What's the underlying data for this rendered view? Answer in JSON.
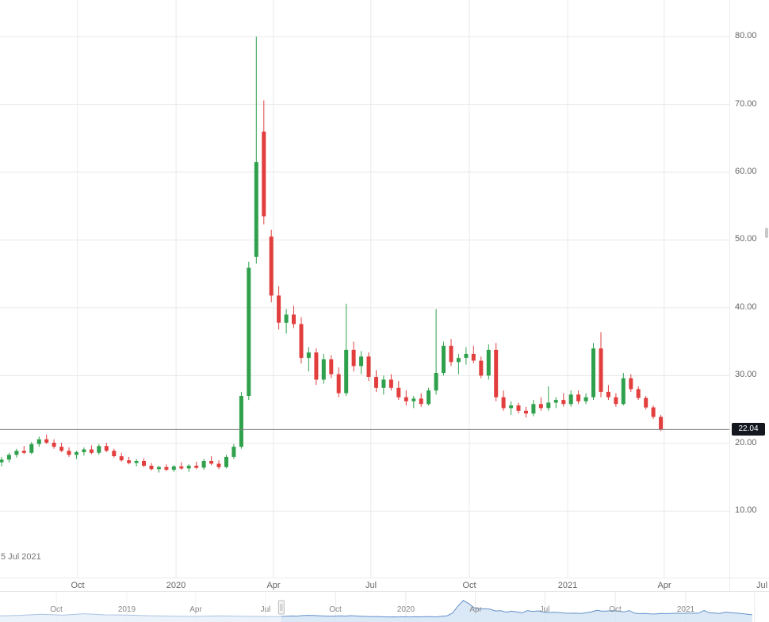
{
  "chart": {
    "footer_date_label": "5 Jul 2021",
    "colors": {
      "up": "#2fa14c",
      "down": "#e23e3e",
      "grid": "#e9e9e9",
      "axis_text": "#666666",
      "price_line": "#7f7f7f",
      "badge_bg": "#15171e",
      "badge_text": "#ffffff",
      "nav_line": "#6492cc",
      "nav_fill": "#cfe0f1",
      "border": "#e6e6e6"
    }
  },
  "chart_data": {
    "type": "candlestick",
    "interval": "weekly",
    "start_date": "2019-07-22",
    "title": "",
    "xlabel": "",
    "ylabel": "",
    "ylim": [
      0.2,
      85.4
    ],
    "grid": true,
    "legend": "none",
    "last_close": 22.04,
    "last_close_label": "22.04",
    "y_ticks": [
      {
        "value": 80,
        "label": "80.00"
      },
      {
        "value": 70,
        "label": "70.00"
      },
      {
        "value": 60,
        "label": "60.00"
      },
      {
        "value": 50,
        "label": "50.00"
      },
      {
        "value": 40,
        "label": "40.00"
      },
      {
        "value": 30,
        "label": "30.00"
      },
      {
        "value": 20,
        "label": "20.00"
      },
      {
        "value": 10,
        "label": "10.00"
      }
    ],
    "x_ticks": [
      {
        "label": "Oct",
        "week": 10.14
      },
      {
        "label": "2020",
        "week": 23.29
      },
      {
        "label": "Apr",
        "week": 36.29
      },
      {
        "label": "Jul",
        "week": 49.29
      },
      {
        "label": "Oct",
        "week": 62.43
      },
      {
        "label": "2021",
        "week": 75.57
      },
      {
        "label": "Apr",
        "week": 88.43
      },
      {
        "label": "Jul",
        "week": 101.43
      }
    ],
    "ohlc": [
      [
        17.2,
        18.0,
        16.6,
        17.6
      ],
      [
        17.6,
        18.6,
        17.2,
        18.3
      ],
      [
        18.3,
        19.2,
        17.9,
        18.9
      ],
      [
        18.9,
        19.6,
        18.4,
        18.6
      ],
      [
        18.6,
        20.2,
        18.4,
        19.9
      ],
      [
        19.9,
        21.0,
        19.5,
        20.6
      ],
      [
        20.6,
        21.3,
        19.9,
        20.1
      ],
      [
        20.1,
        20.6,
        19.2,
        19.5
      ],
      [
        19.5,
        20.1,
        18.7,
        18.9
      ],
      [
        18.9,
        19.4,
        18.0,
        18.3
      ],
      [
        18.3,
        18.9,
        17.7,
        18.7
      ],
      [
        18.7,
        19.4,
        18.2,
        19.1
      ],
      [
        19.1,
        19.7,
        18.4,
        18.6
      ],
      [
        18.6,
        19.9,
        18.3,
        19.6
      ],
      [
        19.6,
        20.1,
        18.7,
        18.9
      ],
      [
        18.9,
        19.2,
        17.9,
        18.1
      ],
      [
        18.1,
        18.6,
        17.3,
        17.5
      ],
      [
        17.5,
        18.0,
        16.9,
        17.1
      ],
      [
        17.1,
        17.7,
        16.6,
        17.4
      ],
      [
        17.4,
        17.8,
        16.5,
        16.7
      ],
      [
        16.7,
        17.1,
        16.0,
        16.2
      ],
      [
        16.2,
        16.7,
        15.7,
        16.5
      ],
      [
        16.5,
        16.9,
        15.9,
        16.1
      ],
      [
        16.1,
        16.8,
        15.8,
        16.6
      ],
      [
        16.6,
        17.2,
        16.1,
        16.3
      ],
      [
        16.3,
        16.9,
        15.8,
        16.7
      ],
      [
        16.7,
        17.3,
        16.2,
        16.4
      ],
      [
        16.4,
        17.7,
        16.1,
        17.4
      ],
      [
        17.4,
        18.1,
        16.8,
        17.0
      ],
      [
        17.0,
        17.5,
        16.2,
        16.5
      ],
      [
        16.5,
        18.3,
        16.3,
        18.0
      ],
      [
        18.0,
        19.9,
        17.7,
        19.5
      ],
      [
        19.5,
        27.6,
        19.2,
        27.0
      ],
      [
        27.0,
        46.8,
        26.4,
        45.9
      ],
      [
        47.5,
        80.0,
        46.5,
        61.5
      ],
      [
        66.0,
        70.6,
        52.3,
        53.5
      ],
      [
        50.5,
        51.5,
        40.8,
        41.8
      ],
      [
        41.8,
        43.2,
        36.8,
        37.8
      ],
      [
        37.8,
        39.8,
        36.2,
        39.0
      ],
      [
        39.0,
        40.3,
        37.0,
        37.6
      ],
      [
        37.6,
        38.6,
        31.8,
        32.6
      ],
      [
        32.6,
        34.2,
        30.6,
        33.4
      ],
      [
        33.4,
        34.0,
        28.6,
        29.4
      ],
      [
        29.4,
        33.2,
        28.8,
        32.4
      ],
      [
        32.4,
        33.0,
        29.6,
        30.2
      ],
      [
        30.2,
        31.2,
        26.8,
        27.4
      ],
      [
        27.4,
        40.6,
        27.0,
        33.8
      ],
      [
        33.8,
        35.0,
        30.6,
        31.4
      ],
      [
        31.4,
        33.6,
        30.2,
        32.8
      ],
      [
        32.8,
        33.4,
        29.2,
        29.8
      ],
      [
        29.8,
        30.8,
        27.6,
        28.2
      ],
      [
        28.2,
        30.0,
        27.2,
        29.4
      ],
      [
        29.4,
        30.2,
        27.8,
        28.2
      ],
      [
        28.2,
        29.2,
        26.4,
        26.8
      ],
      [
        26.8,
        27.8,
        25.6,
        26.2
      ],
      [
        26.2,
        27.0,
        25.2,
        26.6
      ],
      [
        26.6,
        27.4,
        25.4,
        25.8
      ],
      [
        25.8,
        28.2,
        25.6,
        27.8
      ],
      [
        27.8,
        39.8,
        27.2,
        30.4
      ],
      [
        30.4,
        35.0,
        30.0,
        34.4
      ],
      [
        34.4,
        35.4,
        31.4,
        32.0
      ],
      [
        32.0,
        33.2,
        30.2,
        32.6
      ],
      [
        32.6,
        34.2,
        31.6,
        33.2
      ],
      [
        33.2,
        34.4,
        31.8,
        32.2
      ],
      [
        32.2,
        32.8,
        29.6,
        30.0
      ],
      [
        30.0,
        34.6,
        29.4,
        33.8
      ],
      [
        33.8,
        34.8,
        26.2,
        26.8
      ],
      [
        26.8,
        27.8,
        24.8,
        25.2
      ],
      [
        25.2,
        26.2,
        24.2,
        25.6
      ],
      [
        25.6,
        26.0,
        24.4,
        24.8
      ],
      [
        24.8,
        25.4,
        23.8,
        24.4
      ],
      [
        24.4,
        26.4,
        24.0,
        25.8
      ],
      [
        25.8,
        26.8,
        24.8,
        25.2
      ],
      [
        25.2,
        28.4,
        24.8,
        26.0
      ],
      [
        26.0,
        26.8,
        25.2,
        26.4
      ],
      [
        26.4,
        27.4,
        25.4,
        25.8
      ],
      [
        25.8,
        27.8,
        25.4,
        27.2
      ],
      [
        27.2,
        27.8,
        25.8,
        26.2
      ],
      [
        26.2,
        27.4,
        25.8,
        26.8
      ],
      [
        26.8,
        34.8,
        26.4,
        34.0
      ],
      [
        34.0,
        36.4,
        26.8,
        27.6
      ],
      [
        27.6,
        28.6,
        26.4,
        26.8
      ],
      [
        26.8,
        27.4,
        25.4,
        25.8
      ],
      [
        25.8,
        30.4,
        25.6,
        29.6
      ],
      [
        29.6,
        30.2,
        27.6,
        28.0
      ],
      [
        28.0,
        28.4,
        26.4,
        26.7
      ],
      [
        26.7,
        27.0,
        25.0,
        25.3
      ],
      [
        25.3,
        25.6,
        23.6,
        23.9
      ],
      [
        23.9,
        24.2,
        21.8,
        22.04
      ]
    ],
    "navigator": {
      "x_ticks": [
        {
          "label": "Oct",
          "week": -13.14
        },
        {
          "label": "2019",
          "week": 0
        },
        {
          "label": "Apr",
          "week": 12.86
        },
        {
          "label": "Jul",
          "week": 25.86
        },
        {
          "label": "Oct",
          "week": 39.0
        },
        {
          "label": "2020",
          "week": 52.14
        },
        {
          "label": "Apr",
          "week": 65.14
        },
        {
          "label": "Jul",
          "week": 78.14
        },
        {
          "label": "Oct",
          "week": 91.29
        },
        {
          "label": "2021",
          "week": 104.43
        },
        {
          "label": "",
          "week": 117.29
        }
      ],
      "prefix_points": [
        [
          -24,
          19
        ],
        [
          -20,
          20.5
        ],
        [
          -16,
          23.5
        ],
        [
          -12,
          21
        ],
        [
          -8,
          25
        ],
        [
          -4,
          22
        ],
        [
          0,
          21.5
        ],
        [
          4.3,
          19.5
        ],
        [
          8.7,
          18.5
        ],
        [
          13,
          17.8
        ],
        [
          17.4,
          19
        ],
        [
          21.7,
          18.2
        ],
        [
          26,
          17.4
        ]
      ],
      "candles_start_week": 28.86
    }
  }
}
